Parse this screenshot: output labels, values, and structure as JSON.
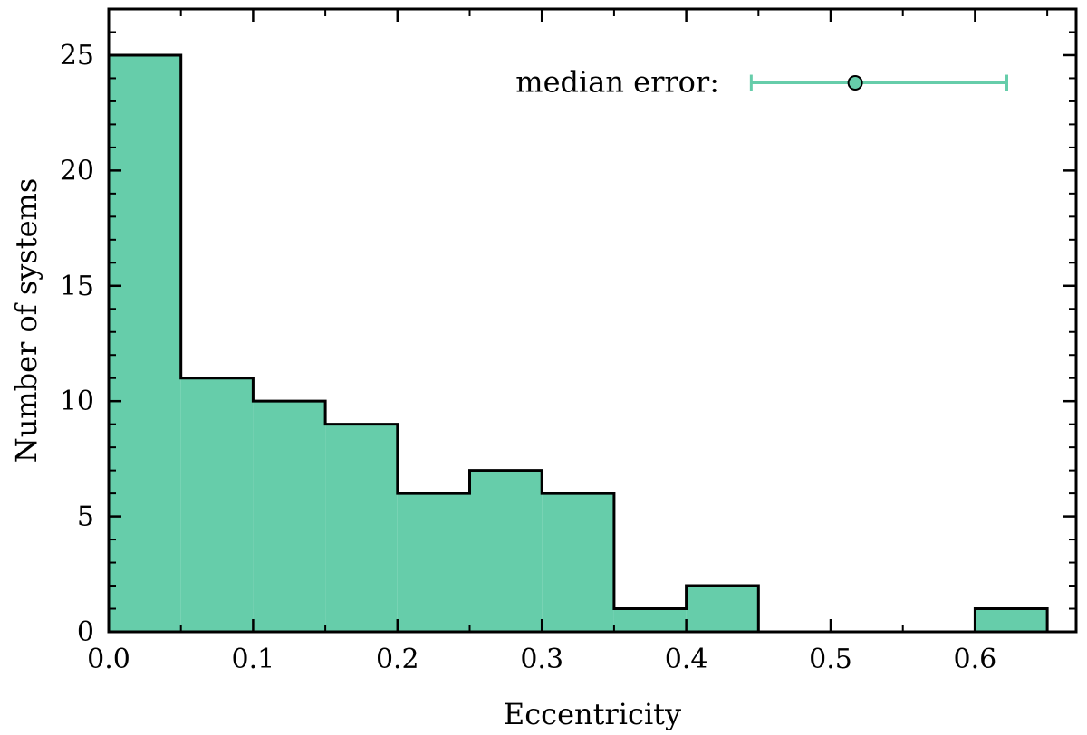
{
  "chart_data": {
    "type": "bar",
    "subtype": "histogram",
    "xlabel": "Eccentricity",
    "ylabel": "Number of systems",
    "xlim": [
      0.0,
      0.67
    ],
    "ylim": [
      0,
      27
    ],
    "xticks": [
      0.0,
      0.1,
      0.2,
      0.3,
      0.4,
      0.5,
      0.6
    ],
    "xtick_labels": [
      "0.0",
      "0.1",
      "0.2",
      "0.3",
      "0.4",
      "0.5",
      "0.6"
    ],
    "yticks": [
      0,
      5,
      10,
      15,
      20,
      25
    ],
    "ytick_labels": [
      "0",
      "5",
      "10",
      "15",
      "20",
      "25"
    ],
    "bins": [
      {
        "x0": 0.0,
        "x1": 0.05,
        "count": 25
      },
      {
        "x0": 0.05,
        "x1": 0.1,
        "count": 11
      },
      {
        "x0": 0.1,
        "x1": 0.15,
        "count": 10
      },
      {
        "x0": 0.15,
        "x1": 0.2,
        "count": 9
      },
      {
        "x0": 0.2,
        "x1": 0.25,
        "count": 6
      },
      {
        "x0": 0.25,
        "x1": 0.3,
        "count": 7
      },
      {
        "x0": 0.3,
        "x1": 0.35,
        "count": 6
      },
      {
        "x0": 0.35,
        "x1": 0.4,
        "count": 1
      },
      {
        "x0": 0.4,
        "x1": 0.45,
        "count": 2
      },
      {
        "x0": 0.45,
        "x1": 0.5,
        "count": 0
      },
      {
        "x0": 0.5,
        "x1": 0.55,
        "count": 0
      },
      {
        "x0": 0.55,
        "x1": 0.6,
        "count": 0
      },
      {
        "x0": 0.6,
        "x1": 0.65,
        "count": 1
      }
    ],
    "fill_color": "#66cdaa",
    "edge_color": "#000000",
    "annotation": {
      "label": "median error:",
      "center": 0.517,
      "xerr_low": 0.445,
      "xerr_high": 0.622,
      "y": 23.8,
      "color": "#66cdaa"
    },
    "grid": false,
    "legend": "none"
  }
}
